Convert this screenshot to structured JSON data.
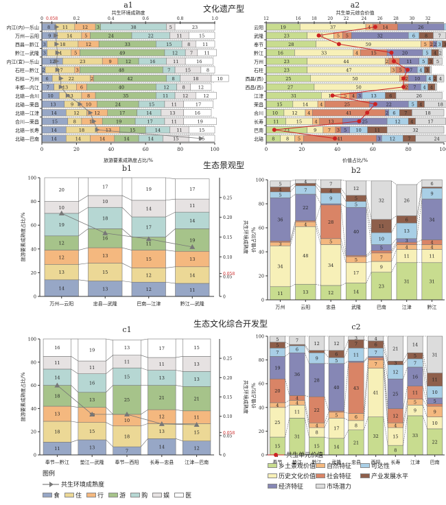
{
  "titles": {
    "section_a": "文化遗产型",
    "section_b": "生态景观型",
    "section_c": "生态文化综合开发型"
  },
  "chart_data": [
    {
      "id": "a1",
      "type": "bar",
      "orientation": "horizontal-stacked",
      "title": "a1",
      "top_axis_label": "共生环境成熟度",
      "top_axis_ticks": [
        "0",
        "0.058",
        "0.2",
        "0.4",
        "0.6",
        "0.8",
        "1.0"
      ],
      "top_axis_range": [
        0,
        1.0
      ],
      "threshold_label": "0.058",
      "xlabel": "旅游要素成熟度占比/%",
      "xlim": [
        0,
        100
      ],
      "xticks": [
        0,
        20,
        40,
        60,
        80,
        100
      ],
      "categories": [
        "内江(内)—乐山",
        "万州—云阳",
        "西昌—黔江",
        "黔江—武隆",
        "内江(宜)—乐山",
        "石柱—黔江",
        "石柱—万州",
        "丰都—内江",
        "北碚—合川",
        "北碚—荣昌",
        "北碚—江津",
        "合川—荣昌",
        "北碚—长寿",
        "北碚—巴南"
      ],
      "series": [
        {
          "name": "食",
          "color": "#97a7c6",
          "values": [
            8,
            9,
            3,
            3,
            12,
            2,
            6,
            7,
            10,
            13,
            14,
            15,
            14,
            14
          ]
        },
        {
          "name": "住",
          "color": "#ecd896",
          "values": [
            11,
            14,
            18,
            14,
            23,
            17,
            22,
            13,
            13,
            9,
            12,
            8,
            18,
            14
          ]
        },
        {
          "name": "行",
          "color": "#f4b87f",
          "values": [
            12,
            5,
            12,
            5,
            9,
            3,
            2,
            6,
            8,
            10,
            12,
            12,
            13,
            14
          ]
        },
        {
          "name": "游",
          "color": "#a6c38a",
          "values": [
            3,
            24,
            33,
            49,
            12,
            48,
            42,
            40,
            35,
            24,
            17,
            19,
            15,
            14
          ]
        },
        {
          "name": "购",
          "color": "#b6d7d3",
          "values": [
            38,
            22,
            15,
            12,
            16,
            7,
            8,
            12,
            11,
            15,
            14,
            17,
            14,
            14
          ]
        },
        {
          "name": "娱",
          "color": "#e6e2e2",
          "values": [
            5,
            11,
            8,
            7,
            11,
            15,
            18,
            8,
            12,
            11,
            13,
            11,
            11,
            15
          ]
        },
        {
          "name": "医",
          "color": "#ffffff",
          "values": [
            23,
            15,
            11,
            11,
            16,
            8,
            10,
            12,
            12,
            17,
            16,
            19,
            15,
            15
          ]
        }
      ],
      "line": {
        "name": "共生环境成熟度",
        "values": [
          0.085,
          0.08,
          0.085,
          0.09,
          0.085,
          0.09,
          0.11,
          0.11,
          0.15,
          0.22,
          0.28,
          0.3,
          0.32,
          0.92
        ]
      }
    },
    {
      "id": "a2",
      "type": "bar",
      "orientation": "horizontal-stacked",
      "title": "a2",
      "top_axis_label": "共生单元综合价值",
      "top_axis_ticks": [
        "12",
        "16",
        "18",
        "20",
        "22",
        "24",
        "26",
        "28",
        "30",
        "32"
      ],
      "xlabel": "价值占比/%",
      "xlim": [
        0,
        100
      ],
      "xticks": [
        0,
        20,
        40,
        60,
        80,
        100
      ],
      "categories": [
        "云阳",
        "武隆",
        "奉节",
        "黔江",
        "万州",
        "石柱",
        "西昌(西)",
        "西昌(西)",
        "江津",
        "荣昌",
        "合川",
        "长寿",
        "巴南",
        "北碚"
      ],
      "series": [
        {
          "name": "乡土景观价值",
          "color": "#c8dc8f",
          "values": [
            19,
            23,
            28,
            16,
            23,
            23,
            25,
            27,
            31,
            15,
            10,
            11,
            23,
            8
          ]
        },
        {
          "name": "历史文化价值",
          "color": "#f7f0b8",
          "values": [
            37,
            15,
            59,
            33,
            44,
            47,
            50,
            50,
            11,
            14,
            12,
            15,
            9,
            8
          ]
        },
        {
          "name": "自然特征",
          "color": "#f4b87f",
          "values": [
            4,
            5,
            5,
            4,
            2,
            3,
            3,
            1,
            5,
            4,
            4,
            4,
            7,
            5
          ]
        },
        {
          "name": "社会特征",
          "color": "#d98466",
          "values": [
            14,
            5,
            2,
            15,
            6,
            5,
            2,
            2,
            4,
            25,
            41,
            13,
            3,
            41
          ]
        },
        {
          "name": "经济特征",
          "color": "#8687b5",
          "values": [
            26,
            32,
            2,
            20,
            11,
            7,
            10,
            7,
            3,
            22,
            2,
            25,
            5,
            3
          ]
        },
        {
          "name": "可达性",
          "color": "#a9cfe6",
          "values": [
            10,
            6,
            3,
            5,
            5,
            4,
            4,
            4,
            13,
            5,
            6,
            12,
            10,
            12
          ]
        },
        {
          "name": "产业发展水平",
          "color": "#8e5f4b",
          "values": [
            3,
            8,
            3,
            4,
            3,
            3,
            2,
            4,
            6,
            4,
            7,
            4,
            11,
            7
          ]
        },
        {
          "name": "市场潜力",
          "color": "#dcdcdc",
          "values": [
            6,
            7,
            2,
            2,
            5,
            1,
            4,
            1,
            26,
            18,
            18,
            17,
            32,
            24
          ]
        }
      ],
      "line": {
        "name": "共生单元价值",
        "values": [
          25.5,
          18.5,
          21.0,
          27.5,
          27.8,
          29.5,
          29.0,
          29.0,
          20.2,
          25.5,
          24.5,
          23.5,
          13.0,
          20.5
        ]
      }
    },
    {
      "id": "b1",
      "type": "bar",
      "orientation": "vertical-stacked",
      "title": "b1",
      "ylabel": "旅游要素成熟度占比/%",
      "ylim": [
        0,
        100
      ],
      "yticks": [
        0,
        20,
        40,
        60,
        80,
        100
      ],
      "y2label": "共生环境成熟度",
      "y2ticks": [
        "0",
        "0.05",
        "0.058",
        "0.10",
        "0.15",
        "0.20",
        "0.25"
      ],
      "y2lim": [
        0,
        0.3
      ],
      "threshold_label": "0.058",
      "categories": [
        "万州—云阳",
        "忠县—武隆",
        "巴南—江津",
        "黔江—武隆"
      ],
      "series": [
        {
          "name": "食",
          "color": "#97a7c6",
          "values": [
            14,
            13,
            12,
            11
          ]
        },
        {
          "name": "住",
          "color": "#ecd896",
          "values": [
            13,
            15,
            12,
            14
          ]
        },
        {
          "name": "行",
          "color": "#f4b87f",
          "values": [
            12,
            13,
            15,
            13
          ]
        },
        {
          "name": "游",
          "color": "#a6c38a",
          "values": [
            12,
            16,
            11,
            19
          ]
        },
        {
          "name": "购",
          "color": "#b6d7d3",
          "values": [
            19,
            18,
            17,
            14
          ]
        },
        {
          "name": "娱",
          "color": "#e6e2e2",
          "values": [
            10,
            10,
            14,
            11
          ]
        },
        {
          "name": "医",
          "color": "#ffffff",
          "values": [
            20,
            17,
            19,
            17
          ]
        }
      ],
      "line": {
        "name": "共生环境成熟度",
        "values": [
          0.21,
          0.16,
          0.145,
          0.125
        ]
      }
    },
    {
      "id": "b2",
      "type": "bar",
      "orientation": "vertical-stacked",
      "title": "b2",
      "ylabel": "价值占比/%",
      "ylim": [
        0,
        100
      ],
      "yticks": [
        0,
        20,
        40,
        60,
        80,
        100
      ],
      "categories": [
        "万州",
        "云阳",
        "忠县",
        "武隆",
        "巴南",
        "江津",
        "黔江"
      ],
      "series": [
        {
          "name": "乡土景观价值",
          "color": "#c8dc8f",
          "values": [
            11,
            13,
            12,
            14,
            23,
            31,
            31
          ]
        },
        {
          "name": "历史文化价值",
          "color": "#f7f0b8",
          "values": [
            34,
            48,
            34,
            17,
            9,
            11,
            11
          ]
        },
        {
          "name": "自然特征",
          "color": "#f4b87f",
          "values": [
            3,
            4,
            5,
            5,
            7,
            4,
            4
          ]
        },
        {
          "name": "社会特征",
          "color": "#d98466",
          "values": [
            1,
            1,
            28,
            1,
            2,
            2,
            4
          ]
        },
        {
          "name": "经济特征",
          "color": "#8687b5",
          "values": [
            36,
            22,
            1,
            40,
            5,
            3,
            34
          ]
        },
        {
          "name": "可达性",
          "color": "#a9cfe6",
          "values": [
            5,
            7,
            9,
            5,
            10,
            13,
            9
          ]
        },
        {
          "name": "产业发展水平",
          "color": "#8e5f4b",
          "values": [
            4,
            2,
            4,
            5,
            11,
            6,
            1
          ]
        },
        {
          "name": "市场潜力",
          "color": "#dcdcdc",
          "values": [
            5,
            4,
            7,
            12,
            32,
            26,
            6
          ]
        }
      ]
    },
    {
      "id": "c1",
      "type": "bar",
      "orientation": "vertical-stacked",
      "title": "c1",
      "ylabel": "旅游要素成熟度占比/%",
      "ylim": [
        0,
        100
      ],
      "yticks": [
        0,
        20,
        40,
        60,
        80,
        100
      ],
      "y2label": "共生环境成熟度",
      "y2ticks": [
        "0",
        "0.05",
        "0.058",
        "0.10",
        "0.15",
        "0.20",
        "0.25"
      ],
      "y2lim": [
        0,
        0.3
      ],
      "threshold_label": "0.058",
      "categories": [
        "奉节—黔江",
        "垫江—武隆",
        "奉节—西阳",
        "长寿—忠县",
        "江津—巴南"
      ],
      "series": [
        {
          "name": "食",
          "color": "#97a7c6",
          "values": [
            11,
            13,
            7,
            14,
            12
          ]
        },
        {
          "name": "住",
          "color": "#ecd896",
          "values": [
            18,
            15,
            18,
            13,
            15
          ]
        },
        {
          "name": "行",
          "color": "#f4b87f",
          "values": [
            13,
            13,
            10,
            12,
            11
          ]
        },
        {
          "name": "游",
          "color": "#a6c38a",
          "values": [
            18,
            13,
            25,
            21,
            21
          ]
        },
        {
          "name": "购",
          "color": "#b6d7d3",
          "values": [
            14,
            16,
            15,
            13,
            13
          ]
        },
        {
          "name": "娱",
          "color": "#e6e2e2",
          "values": [
            11,
            11,
            11,
            11,
            13
          ]
        },
        {
          "name": "医",
          "color": "#ffffff",
          "values": [
            16,
            19,
            13,
            17,
            15
          ]
        }
      ],
      "line": {
        "name": "共生环境成熟度",
        "values": [
          0.18,
          0.105,
          0.105,
          0.08,
          0.078
        ]
      }
    },
    {
      "id": "c2",
      "type": "bar",
      "orientation": "vertical-stacked",
      "title": "c2",
      "ylabel": "价值占比/%",
      "ylim": [
        0,
        100
      ],
      "yticks": [
        0,
        20,
        40,
        60,
        80,
        100
      ],
      "categories": [
        "奉节",
        "垫江",
        "黔江",
        "武隆",
        "忠县",
        "西阳",
        "长寿",
        "江津",
        "巴南"
      ],
      "series": [
        {
          "name": "乡土景观价值",
          "color": "#c8dc8f",
          "values": [
            15,
            31,
            15,
            14,
            21,
            32,
            8,
            33,
            22
          ]
        },
        {
          "name": "历史文化价值",
          "color": "#f7f0b8",
          "values": [
            25,
            11,
            8,
            17,
            8,
            41,
            15,
            9,
            10
          ]
        },
        {
          "name": "自然特征",
          "color": "#f4b87f",
          "values": [
            4,
            4,
            4,
            5,
            6,
            7,
            4,
            5,
            9
          ]
        },
        {
          "name": "社会特征",
          "color": "#d98466",
          "values": [
            20,
            4,
            22,
            1,
            43,
            2,
            12,
            11,
            2
          ]
        },
        {
          "name": "经济特征",
          "color": "#8687b5",
          "values": [
            19,
            36,
            28,
            40,
            1,
            1,
            25,
            16,
            5
          ]
        },
        {
          "name": "可达性",
          "color": "#a9cfe6",
          "values": [
            7,
            6,
            9,
            5,
            11,
            7,
            12,
            7,
            10
          ]
        },
        {
          "name": "产业发展水平",
          "color": "#8e5f4b",
          "values": [
            5,
            1,
            2,
            6,
            7,
            6,
            3,
            5,
            11
          ]
        },
        {
          "name": "市场潜力",
          "color": "#dcdcdc",
          "values": [
            5,
            7,
            12,
            12,
            3,
            4,
            21,
            14,
            31
          ]
        }
      ]
    }
  ],
  "legend_left": {
    "title": "图例",
    "line_label": "共生环境成熟度",
    "items": [
      {
        "label": "食",
        "color": "#97a7c6"
      },
      {
        "label": "住",
        "color": "#ecd896"
      },
      {
        "label": "行",
        "color": "#f4b87f"
      },
      {
        "label": "游",
        "color": "#a6c38a"
      },
      {
        "label": "购",
        "color": "#b6d7d3"
      },
      {
        "label": "娱",
        "color": "#e6e2e2"
      },
      {
        "label": "医",
        "color": "#ffffff"
      }
    ]
  },
  "legend_right": {
    "line_label": "共生单元价值",
    "line_color": "#cc2222",
    "items": [
      {
        "label": "乡土景观价值",
        "color": "#c8dc8f"
      },
      {
        "label": "自然特征",
        "color": "#f4b87f"
      },
      {
        "label": "可达性",
        "color": "#a9cfe6"
      },
      {
        "label": "历史文化价值",
        "color": "#f7f0b8"
      },
      {
        "label": "社会特征",
        "color": "#d98466"
      },
      {
        "label": "产业发展水平",
        "color": "#8e5f4b"
      },
      {
        "label": "经济特征",
        "color": "#8687b5"
      },
      {
        "label": "市场潜力",
        "color": "#dcdcdc"
      }
    ]
  }
}
